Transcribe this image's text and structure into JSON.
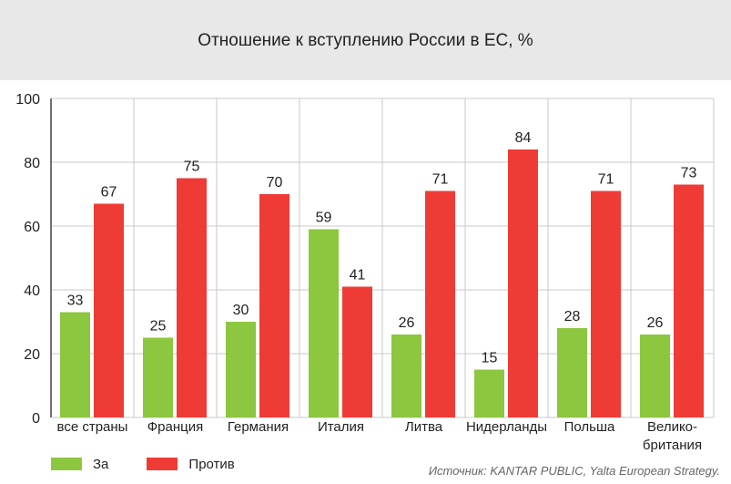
{
  "title": "Отношение к вступлению России в ЕС, %",
  "source": "Источник: KANTAR PUBLIC, Yalta European Strategy.",
  "colors": {
    "za": "#8dc63f",
    "protiv": "#ef3b36",
    "grid": "#c9c9c9",
    "header_bg": "#e8e8e8"
  },
  "chart_data": {
    "type": "bar",
    "title": "Отношение к вступлению России в ЕС, %",
    "categories": [
      "все страны",
      "Франция",
      "Германия",
      "Италия",
      "Литва",
      "Нидерланды",
      "Польша",
      "Велико-\nбритания"
    ],
    "series": [
      {
        "name": "За",
        "color": "#8dc63f",
        "values": [
          33,
          25,
          30,
          59,
          26,
          15,
          28,
          26
        ]
      },
      {
        "name": "Против",
        "color": "#ef3b36",
        "values": [
          67,
          75,
          70,
          41,
          71,
          84,
          71,
          73
        ]
      }
    ],
    "ylim": [
      0,
      100
    ],
    "yticks": [
      0,
      20,
      40,
      60,
      80,
      100
    ],
    "grid": true,
    "legend_position": "bottom-left"
  }
}
